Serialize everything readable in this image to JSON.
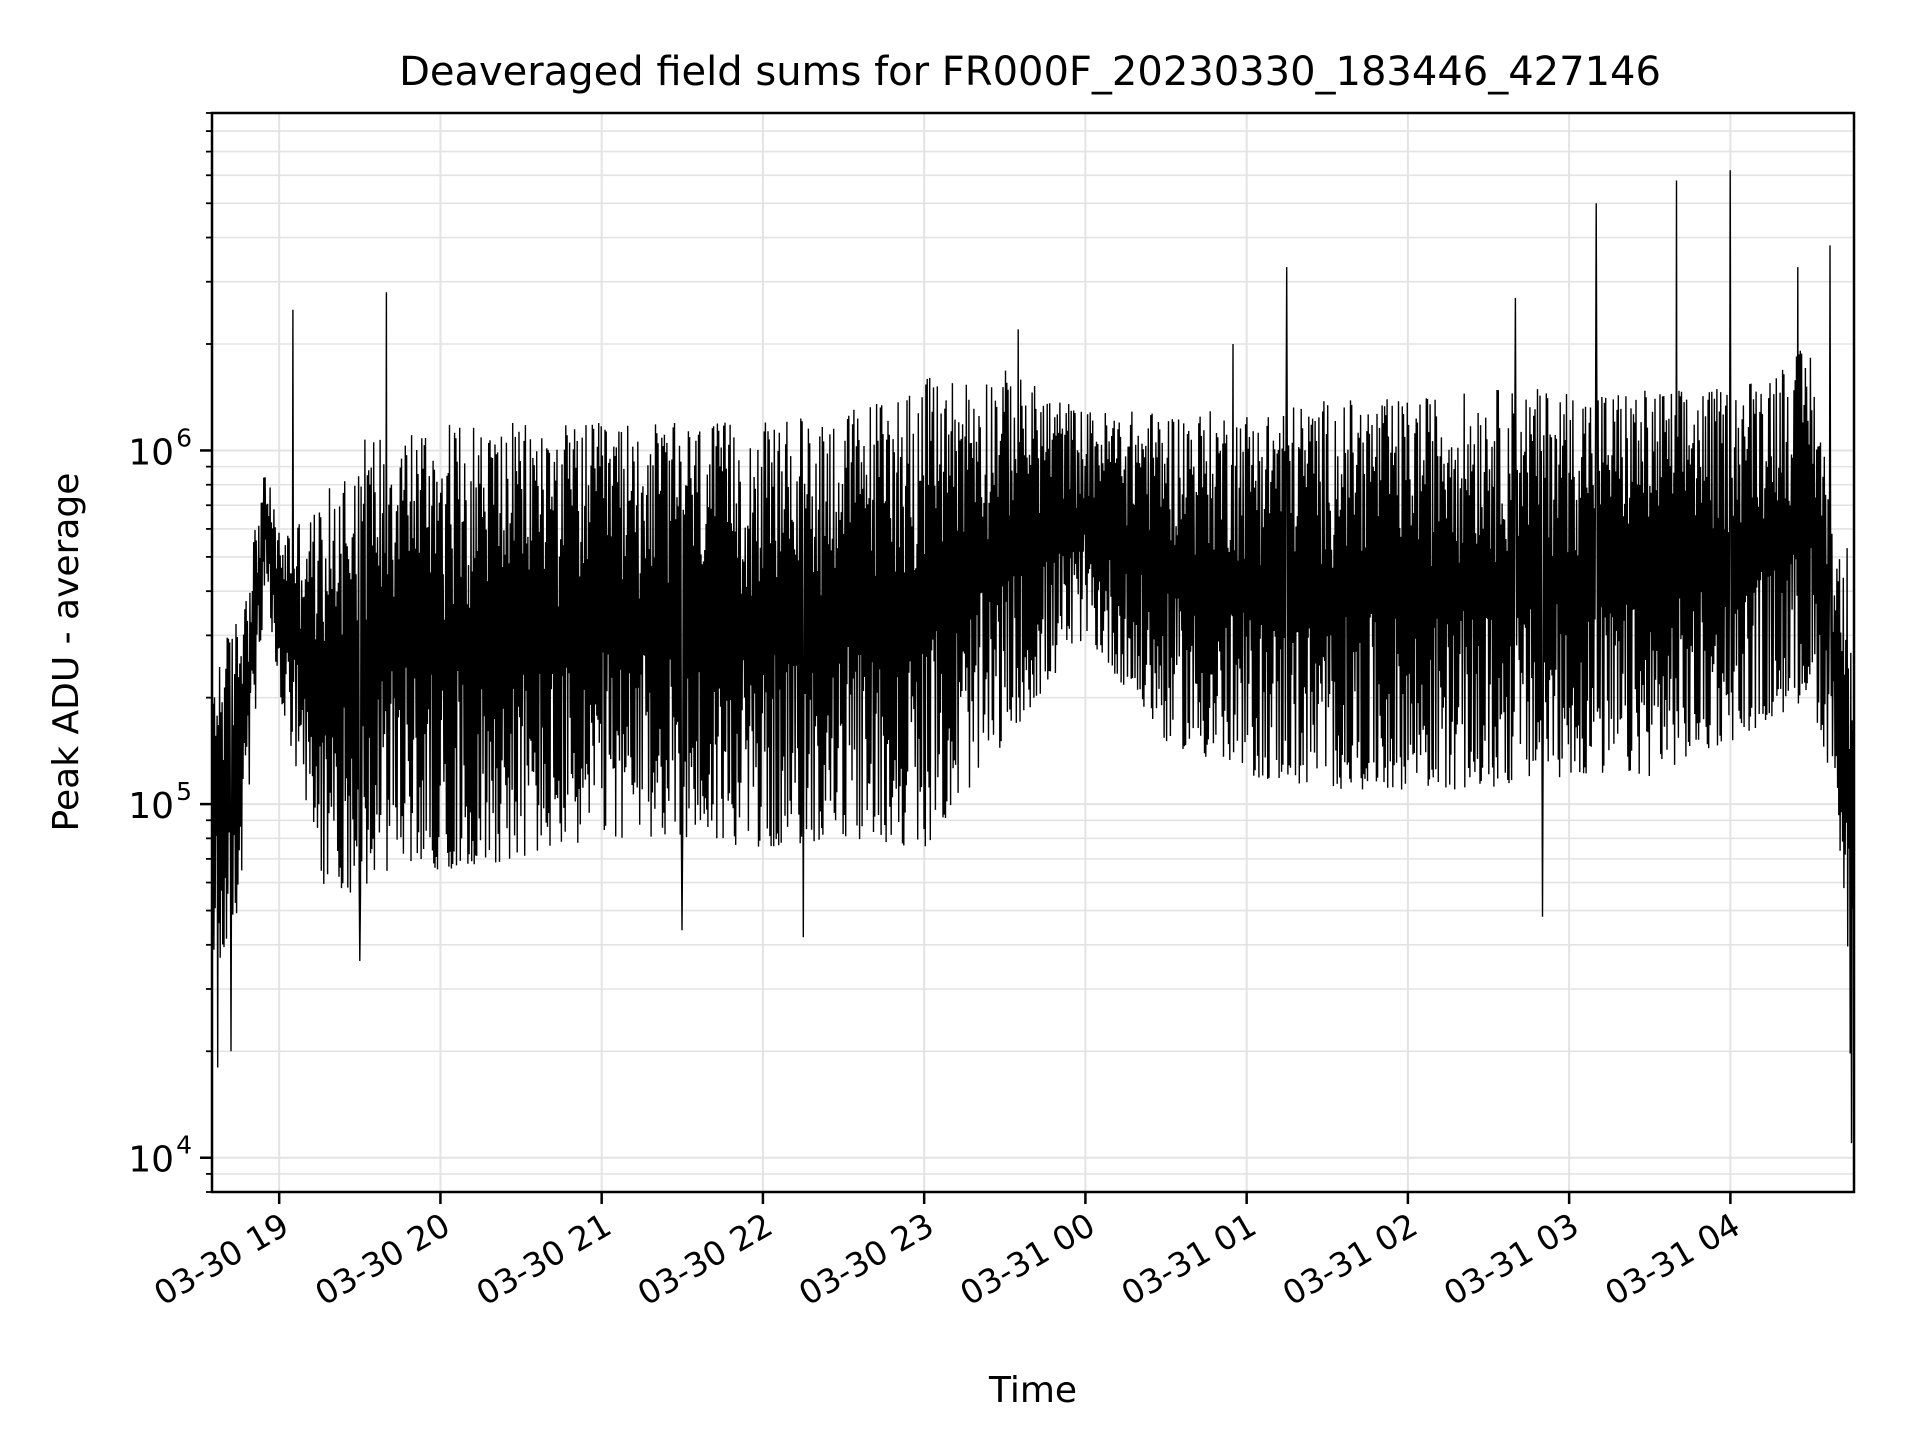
{
  "chart_data": {
    "type": "line",
    "title": "Deaveraged field sums for FR000F_20230330_183446_427146",
    "xlabel": "Time",
    "ylabel": "Peak ADU - average",
    "yscale": "log",
    "ylim": [
      8000,
      9000000
    ],
    "xlim": [
      "2023-03-30 18:35",
      "2023-03-31 04:46"
    ],
    "grid": true,
    "line_color": "#000000",
    "x_ticks": [
      {
        "t": "2023-03-30 19:00",
        "label": "03-30 19"
      },
      {
        "t": "2023-03-30 20:00",
        "label": "03-30 20"
      },
      {
        "t": "2023-03-30 21:00",
        "label": "03-30 21"
      },
      {
        "t": "2023-03-30 22:00",
        "label": "03-30 22"
      },
      {
        "t": "2023-03-30 23:00",
        "label": "03-30 23"
      },
      {
        "t": "2023-03-31 00:00",
        "label": "03-31 00"
      },
      {
        "t": "2023-03-31 01:00",
        "label": "03-31 01"
      },
      {
        "t": "2023-03-31 02:00",
        "label": "03-31 02"
      },
      {
        "t": "2023-03-31 03:00",
        "label": "03-31 03"
      },
      {
        "t": "2023-03-31 04:00",
        "label": "03-31 04"
      }
    ],
    "y_ticks": [
      {
        "value": 10000,
        "base": "10",
        "exp": "4"
      },
      {
        "value": 100000,
        "base": "10",
        "exp": "5"
      },
      {
        "value": 1000000,
        "base": "10",
        "exp": "6"
      }
    ],
    "envelope": [
      {
        "t": "2023-03-30 18:35",
        "low": 30000,
        "high": 250000
      },
      {
        "t": "2023-03-30 18:45",
        "low": 50000,
        "high": 350000
      },
      {
        "t": "2023-03-30 18:55",
        "low": 400000,
        "high": 900000
      },
      {
        "t": "2023-03-30 19:00",
        "low": 200000,
        "high": 600000
      },
      {
        "t": "2023-03-30 19:15",
        "low": 60000,
        "high": 700000
      },
      {
        "t": "2023-03-30 19:30",
        "low": 55000,
        "high": 1100000
      },
      {
        "t": "2023-03-30 19:45",
        "low": 70000,
        "high": 1200000
      },
      {
        "t": "2023-03-30 20:00",
        "low": 65000,
        "high": 1200000
      },
      {
        "t": "2023-03-30 20:30",
        "low": 70000,
        "high": 1200000
      },
      {
        "t": "2023-03-30 21:00",
        "low": 80000,
        "high": 1200000
      },
      {
        "t": "2023-03-30 21:30",
        "low": 80000,
        "high": 1200000
      },
      {
        "t": "2023-03-30 22:00",
        "low": 75000,
        "high": 1200000
      },
      {
        "t": "2023-03-30 22:30",
        "low": 80000,
        "high": 1300000
      },
      {
        "t": "2023-03-30 23:00",
        "low": 75000,
        "high": 1600000
      },
      {
        "t": "2023-03-30 23:30",
        "low": 150000,
        "high": 1700000
      },
      {
        "t": "2023-03-31 00:00",
        "low": 300000,
        "high": 1300000
      },
      {
        "t": "2023-03-31 00:30",
        "low": 150000,
        "high": 1300000
      },
      {
        "t": "2023-03-31 01:00",
        "low": 120000,
        "high": 1300000
      },
      {
        "t": "2023-03-31 01:30",
        "low": 110000,
        "high": 1400000
      },
      {
        "t": "2023-03-31 02:00",
        "low": 110000,
        "high": 1400000
      },
      {
        "t": "2023-03-31 02:30",
        "low": 110000,
        "high": 1500000
      },
      {
        "t": "2023-03-31 03:00",
        "low": 120000,
        "high": 1500000
      },
      {
        "t": "2023-03-31 03:30",
        "low": 120000,
        "high": 1500000
      },
      {
        "t": "2023-03-31 04:00",
        "low": 150000,
        "high": 1500000
      },
      {
        "t": "2023-03-31 04:30",
        "low": 200000,
        "high": 2000000
      },
      {
        "t": "2023-03-31 04:40",
        "low": 100000,
        "high": 500000
      },
      {
        "t": "2023-03-31 04:46",
        "low": 11000,
        "high": 600000
      }
    ],
    "spikes": [
      {
        "t": "2023-03-30 19:05",
        "value": 2500000
      },
      {
        "t": "2023-03-30 19:40",
        "value": 2800000
      },
      {
        "t": "2023-03-31 01:15",
        "value": 3300000
      },
      {
        "t": "2023-03-31 00:55",
        "value": 2000000
      },
      {
        "t": "2023-03-31 02:40",
        "value": 2700000
      },
      {
        "t": "2023-03-31 03:10",
        "value": 5000000
      },
      {
        "t": "2023-03-31 03:40",
        "value": 5800000
      },
      {
        "t": "2023-03-31 04:00",
        "value": 6200000
      },
      {
        "t": "2023-03-31 04:25",
        "value": 3300000
      },
      {
        "t": "2023-03-31 04:37",
        "value": 3800000
      },
      {
        "t": "2023-03-30 23:35",
        "value": 2200000
      }
    ],
    "dips": [
      {
        "t": "2023-03-30 18:37",
        "value": 18000
      },
      {
        "t": "2023-03-30 18:42",
        "value": 20000
      },
      {
        "t": "2023-03-30 19:30",
        "value": 36000
      },
      {
        "t": "2023-03-30 21:30",
        "value": 44000
      },
      {
        "t": "2023-03-30 22:15",
        "value": 42000
      },
      {
        "t": "2023-03-31 02:50",
        "value": 48000
      },
      {
        "t": "2023-03-31 04:45",
        "value": 11000
      }
    ]
  }
}
